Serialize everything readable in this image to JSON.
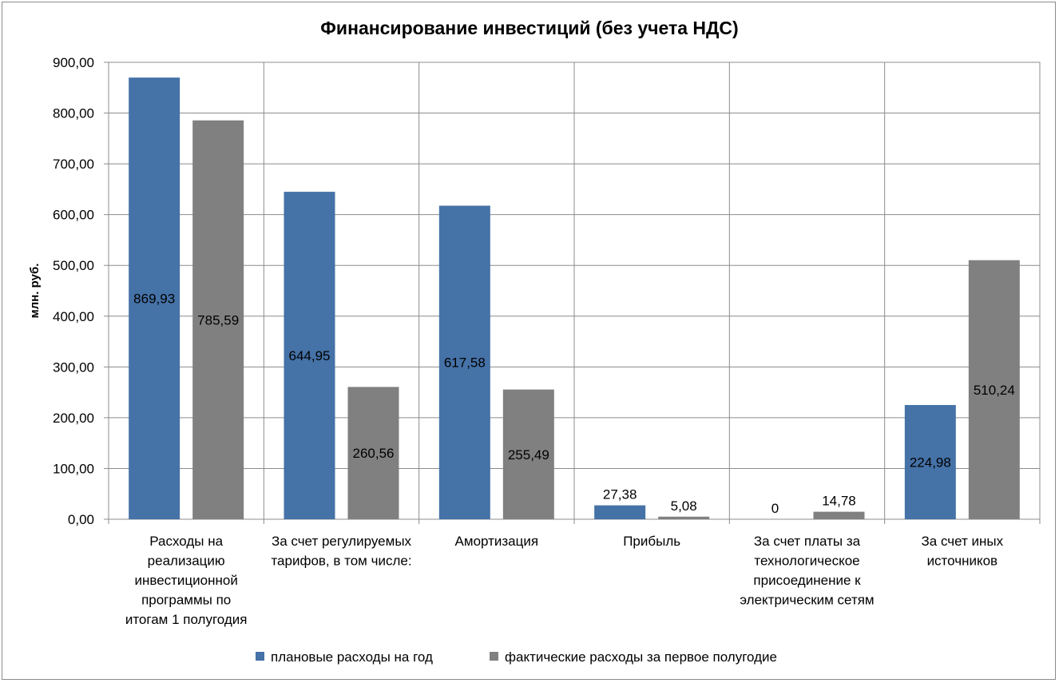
{
  "chart_data": {
    "type": "bar",
    "title": "Финансирование инвестиций (без учета НДС)",
    "ylabel": "млн. руб.",
    "xlabel": "",
    "ylim": [
      0,
      900
    ],
    "y_ticks": [
      "0,00",
      "100,00",
      "200,00",
      "300,00",
      "400,00",
      "500,00",
      "600,00",
      "700,00",
      "800,00",
      "900,00"
    ],
    "y_tick_values": [
      0,
      100,
      200,
      300,
      400,
      500,
      600,
      700,
      800,
      900
    ],
    "grid": true,
    "legend_position": "bottom",
    "categories": [
      [
        "Расходы на",
        "реализацию",
        "инвестиционной",
        "программы по",
        "итогам 1 полугодия"
      ],
      [
        "За счет регулируемых",
        "тарифов, в том числе:"
      ],
      [
        "Амортизация"
      ],
      [
        "Прибыль"
      ],
      [
        "За счет платы за",
        "технологическое",
        "присоединение к",
        "электрическим сетям"
      ],
      [
        "За счет иных",
        "источников"
      ]
    ],
    "series": [
      {
        "name": "плановые расходы на год",
        "color": "#4572a7",
        "values": [
          869.93,
          644.95,
          617.58,
          27.38,
          0,
          224.98
        ],
        "labels": [
          "869,93",
          "644,95",
          "617,58",
          "27,38",
          "0",
          "224,98"
        ]
      },
      {
        "name": "фактические расходы за первое полугодие",
        "color": "#808080",
        "values": [
          785.59,
          260.56,
          255.49,
          5.08,
          14.78,
          510.24
        ],
        "labels": [
          "785,59",
          "260,56",
          "255,49",
          "5,08",
          "14,78",
          "510,24"
        ]
      }
    ]
  }
}
